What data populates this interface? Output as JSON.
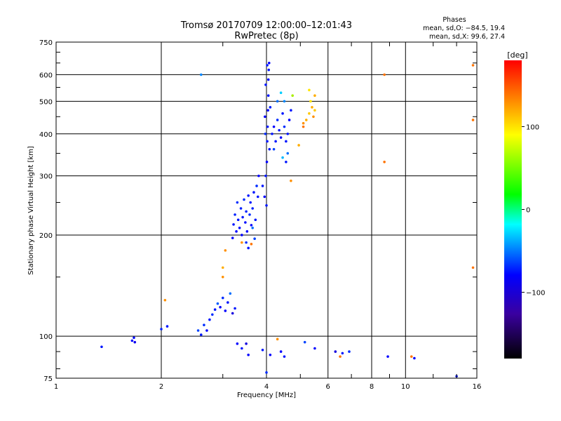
{
  "chart_data": {
    "type": "scatter",
    "title": "Tromsø 20170709 12:00:00–12:01:43",
    "subtitle": "RwPretec (8p)",
    "xlabel": "Frequency [MHz]",
    "ylabel": "Stationary phase Virtual Height [km]",
    "x_scale": "log",
    "y_scale": "log",
    "xlim": [
      1,
      16
    ],
    "ylim": [
      75,
      750
    ],
    "grid": true,
    "x_ticks": [
      1,
      2,
      4,
      6,
      8,
      10,
      16
    ],
    "x_tick_labels": [
      "1",
      "2",
      "4",
      "6",
      "8",
      "10",
      "16"
    ],
    "y_ticks": [
      75,
      100,
      200,
      300,
      400,
      500,
      600,
      750
    ],
    "y_tick_labels": [
      "75",
      "100",
      "200",
      "300",
      "400",
      "500",
      "600",
      "750"
    ],
    "legend": {
      "title": "Phases",
      "lines": [
        "mean, sd,O: −84.5, 19.4",
        "mean, sd,X:  99.6, 27.4"
      ],
      "placement": "top-right"
    },
    "colorbar": {
      "label": "[deg]",
      "range": [
        -180,
        180
      ],
      "ticks": [
        100,
        0,
        -100
      ],
      "tick_labels": [
        "100",
        "0",
        "−100"
      ],
      "colors": [
        "#ff0000",
        "#ffa500",
        "#ffff00",
        "#00ff00",
        "#00ffff",
        "#0000ff",
        "#000000"
      ]
    },
    "series": [
      {
        "marker": "dot",
        "points": [
          {
            "x": 1.35,
            "y": 93,
            "phase": -100
          },
          {
            "x": 1.65,
            "y": 97,
            "phase": -110
          },
          {
            "x": 1.67,
            "y": 99,
            "phase": -105
          },
          {
            "x": 1.68,
            "y": 96,
            "phase": -115
          },
          {
            "x": 2.0,
            "y": 105,
            "phase": -95
          },
          {
            "x": 2.08,
            "y": 107,
            "phase": -100
          },
          {
            "x": 2.05,
            "y": 128,
            "phase": 130
          },
          {
            "x": 2.55,
            "y": 104,
            "phase": -80
          },
          {
            "x": 2.6,
            "y": 101,
            "phase": -100
          },
          {
            "x": 2.65,
            "y": 108,
            "phase": -90
          },
          {
            "x": 2.7,
            "y": 104,
            "phase": -110
          },
          {
            "x": 2.75,
            "y": 112,
            "phase": -100
          },
          {
            "x": 2.8,
            "y": 116,
            "phase": -90
          },
          {
            "x": 2.85,
            "y": 120,
            "phase": -100
          },
          {
            "x": 2.9,
            "y": 125,
            "phase": -70
          },
          {
            "x": 2.95,
            "y": 122,
            "phase": -110
          },
          {
            "x": 3.0,
            "y": 130,
            "phase": -90
          },
          {
            "x": 3.05,
            "y": 119,
            "phase": -110
          },
          {
            "x": 3.1,
            "y": 126,
            "phase": -100
          },
          {
            "x": 3.15,
            "y": 134,
            "phase": -60
          },
          {
            "x": 3.2,
            "y": 117,
            "phase": -120
          },
          {
            "x": 3.25,
            "y": 121,
            "phase": -100
          },
          {
            "x": 3.0,
            "y": 150,
            "phase": 130
          },
          {
            "x": 3.0,
            "y": 160,
            "phase": 120
          },
          {
            "x": 3.05,
            "y": 180,
            "phase": 130
          },
          {
            "x": 3.2,
            "y": 196,
            "phase": -110
          },
          {
            "x": 3.22,
            "y": 215,
            "phase": -100
          },
          {
            "x": 3.25,
            "y": 230,
            "phase": -95
          },
          {
            "x": 3.28,
            "y": 205,
            "phase": -110
          },
          {
            "x": 3.3,
            "y": 250,
            "phase": -90
          },
          {
            "x": 3.32,
            "y": 222,
            "phase": -100
          },
          {
            "x": 3.35,
            "y": 210,
            "phase": -105
          },
          {
            "x": 3.38,
            "y": 240,
            "phase": -95
          },
          {
            "x": 3.4,
            "y": 200,
            "phase": -110
          },
          {
            "x": 3.42,
            "y": 226,
            "phase": -100
          },
          {
            "x": 3.45,
            "y": 255,
            "phase": -90
          },
          {
            "x": 3.48,
            "y": 218,
            "phase": -105
          },
          {
            "x": 3.5,
            "y": 235,
            "phase": -95
          },
          {
            "x": 3.52,
            "y": 205,
            "phase": -110
          },
          {
            "x": 3.55,
            "y": 262,
            "phase": -100
          },
          {
            "x": 3.58,
            "y": 230,
            "phase": -90
          },
          {
            "x": 3.6,
            "y": 250,
            "phase": -100
          },
          {
            "x": 3.62,
            "y": 214,
            "phase": -110
          },
          {
            "x": 3.65,
            "y": 240,
            "phase": -95
          },
          {
            "x": 3.68,
            "y": 268,
            "phase": -100
          },
          {
            "x": 3.7,
            "y": 195,
            "phase": -80
          },
          {
            "x": 3.72,
            "y": 222,
            "phase": -100
          },
          {
            "x": 3.75,
            "y": 280,
            "phase": -90
          },
          {
            "x": 3.78,
            "y": 260,
            "phase": -100
          },
          {
            "x": 3.8,
            "y": 300,
            "phase": -110
          },
          {
            "x": 3.5,
            "y": 190,
            "phase": -90
          },
          {
            "x": 3.55,
            "y": 183,
            "phase": -100
          },
          {
            "x": 3.62,
            "y": 188,
            "phase": 140
          },
          {
            "x": 3.4,
            "y": 190,
            "phase": 130
          },
          {
            "x": 3.65,
            "y": 210,
            "phase": -60
          },
          {
            "x": 3.9,
            "y": 280,
            "phase": -100
          },
          {
            "x": 3.95,
            "y": 260,
            "phase": -110
          },
          {
            "x": 3.98,
            "y": 300,
            "phase": -100
          },
          {
            "x": 4.0,
            "y": 245,
            "phase": -100
          },
          {
            "x": 4.01,
            "y": 330,
            "phase": -110
          },
          {
            "x": 4.02,
            "y": 380,
            "phase": -100
          },
          {
            "x": 4.03,
            "y": 420,
            "phase": -100
          },
          {
            "x": 4.04,
            "y": 470,
            "phase": -110
          },
          {
            "x": 4.05,
            "y": 520,
            "phase": -100
          },
          {
            "x": 4.05,
            "y": 580,
            "phase": -105
          },
          {
            "x": 4.06,
            "y": 620,
            "phase": -100
          },
          {
            "x": 4.07,
            "y": 650,
            "phase": -110
          },
          {
            "x": 4.02,
            "y": 640,
            "phase": -100
          },
          {
            "x": 3.98,
            "y": 560,
            "phase": -100
          },
          {
            "x": 3.96,
            "y": 450,
            "phase": -110
          },
          {
            "x": 3.97,
            "y": 400,
            "phase": -90
          },
          {
            "x": 4.08,
            "y": 360,
            "phase": -100
          },
          {
            "x": 4.1,
            "y": 480,
            "phase": -95
          },
          {
            "x": 4.15,
            "y": 400,
            "phase": -100
          },
          {
            "x": 4.2,
            "y": 420,
            "phase": -110
          },
          {
            "x": 4.25,
            "y": 380,
            "phase": -100
          },
          {
            "x": 4.3,
            "y": 440,
            "phase": -90
          },
          {
            "x": 4.35,
            "y": 410,
            "phase": -100
          },
          {
            "x": 4.4,
            "y": 390,
            "phase": -110
          },
          {
            "x": 4.45,
            "y": 460,
            "phase": -100
          },
          {
            "x": 4.5,
            "y": 420,
            "phase": -90
          },
          {
            "x": 4.55,
            "y": 380,
            "phase": -100
          },
          {
            "x": 4.6,
            "y": 400,
            "phase": -100
          },
          {
            "x": 4.65,
            "y": 440,
            "phase": -110
          },
          {
            "x": 4.7,
            "y": 470,
            "phase": -100
          },
          {
            "x": 4.3,
            "y": 500,
            "phase": -60
          },
          {
            "x": 4.4,
            "y": 530,
            "phase": -20
          },
          {
            "x": 4.5,
            "y": 500,
            "phase": -50
          },
          {
            "x": 4.6,
            "y": 350,
            "phase": -60
          },
          {
            "x": 4.55,
            "y": 330,
            "phase": -100
          },
          {
            "x": 4.2,
            "y": 360,
            "phase": -80
          },
          {
            "x": 4.45,
            "y": 340,
            "phase": -30
          },
          {
            "x": 4.7,
            "y": 290,
            "phase": 130
          },
          {
            "x": 4.75,
            "y": 520,
            "phase": 80
          },
          {
            "x": 4.95,
            "y": 370,
            "phase": 120
          },
          {
            "x": 5.1,
            "y": 430,
            "phase": 130
          },
          {
            "x": 5.2,
            "y": 440,
            "phase": 120
          },
          {
            "x": 5.3,
            "y": 460,
            "phase": 110
          },
          {
            "x": 5.35,
            "y": 500,
            "phase": 100
          },
          {
            "x": 5.4,
            "y": 480,
            "phase": 120
          },
          {
            "x": 5.45,
            "y": 450,
            "phase": 130
          },
          {
            "x": 5.5,
            "y": 470,
            "phase": 110
          },
          {
            "x": 5.3,
            "y": 540,
            "phase": 100
          },
          {
            "x": 5.5,
            "y": 520,
            "phase": 120
          },
          {
            "x": 5.1,
            "y": 420,
            "phase": 140
          },
          {
            "x": 2.6,
            "y": 600,
            "phase": -50
          },
          {
            "x": 3.3,
            "y": 95,
            "phase": -110
          },
          {
            "x": 3.4,
            "y": 92,
            "phase": -100
          },
          {
            "x": 3.5,
            "y": 95,
            "phase": -120
          },
          {
            "x": 3.55,
            "y": 88,
            "phase": -110
          },
          {
            "x": 3.9,
            "y": 91,
            "phase": -100
          },
          {
            "x": 4.0,
            "y": 78,
            "phase": -90
          },
          {
            "x": 4.1,
            "y": 88,
            "phase": -110
          },
          {
            "x": 4.3,
            "y": 98,
            "phase": 130
          },
          {
            "x": 4.4,
            "y": 90,
            "phase": -110
          },
          {
            "x": 4.5,
            "y": 87,
            "phase": -100
          },
          {
            "x": 5.15,
            "y": 96,
            "phase": -80
          },
          {
            "x": 5.5,
            "y": 92,
            "phase": -110
          },
          {
            "x": 6.3,
            "y": 90,
            "phase": -120
          },
          {
            "x": 6.5,
            "y": 87,
            "phase": 140
          },
          {
            "x": 6.6,
            "y": 89,
            "phase": -100
          },
          {
            "x": 6.9,
            "y": 90,
            "phase": -90
          },
          {
            "x": 8.7,
            "y": 600,
            "phase": 140
          },
          {
            "x": 8.7,
            "y": 330,
            "phase": 140
          },
          {
            "x": 8.9,
            "y": 87,
            "phase": -110
          },
          {
            "x": 10.4,
            "y": 87,
            "phase": 140
          },
          {
            "x": 10.6,
            "y": 86,
            "phase": -110
          },
          {
            "x": 14.0,
            "y": 76,
            "phase": -100
          },
          {
            "x": 15.6,
            "y": 640,
            "phase": 140
          },
          {
            "x": 15.6,
            "y": 440,
            "phase": 140
          },
          {
            "x": 15.6,
            "y": 160,
            "phase": 140
          }
        ]
      }
    ]
  }
}
